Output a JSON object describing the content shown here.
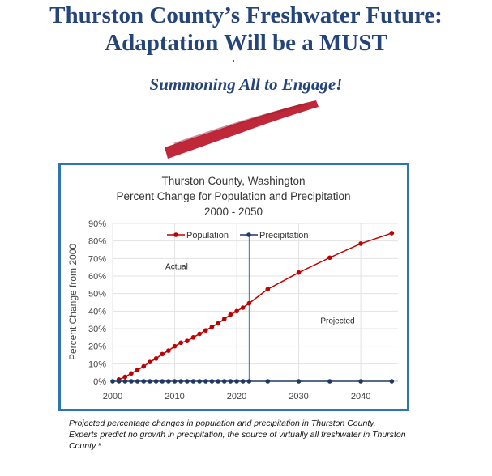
{
  "slide": {
    "title_line1": "Thurston County’s Freshwater Future:",
    "title_line2": "Adaptation Will be a MUST",
    "subtitle": "Summoning All to Engage!",
    "accent_color": "#c0283a",
    "title_color": "#25447a"
  },
  "caption": {
    "line1": "Projected percentage changes in population and precipitation in Thurston County.",
    "line2": "Experts predict no growth in precipitation, the source of virtually all freshwater in Thurston County.*"
  },
  "chart_data": {
    "type": "line",
    "title_lines": [
      "Thurston County, Washington",
      "Percent Change for Population and Precipitation",
      "2000 - 2050"
    ],
    "ylabel": "Percent Change from 2000",
    "xlabel": "",
    "xlim": [
      2000,
      2046
    ],
    "ylim": [
      0,
      90
    ],
    "x_ticks": [
      "2000",
      "2010",
      "2020",
      "2030",
      "2040"
    ],
    "x_tick_values": [
      2000,
      2010,
      2020,
      2030,
      2040
    ],
    "y_ticks": [
      "0%",
      "10%",
      "20%",
      "30%",
      "40%",
      "50%",
      "60%",
      "70%",
      "80%",
      "90%"
    ],
    "y_tick_values": [
      0,
      10,
      20,
      30,
      40,
      50,
      60,
      70,
      80,
      90
    ],
    "grid": true,
    "divider_year": 2022,
    "annotations": {
      "actual": "Actual",
      "projected": "Projected"
    },
    "series": [
      {
        "name": "Population",
        "color": "#c00000",
        "x": [
          2001,
          2002,
          2003,
          2004,
          2005,
          2006,
          2007,
          2008,
          2009,
          2010,
          2011,
          2012,
          2013,
          2014,
          2015,
          2016,
          2017,
          2018,
          2019,
          2020,
          2021,
          2022,
          2025,
          2030,
          2035,
          2040,
          2045
        ],
        "values": [
          1,
          2.5,
          4.5,
          6.5,
          8.5,
          11,
          13,
          15.5,
          17.5,
          20,
          22,
          23,
          25,
          27,
          29,
          31,
          33,
          35.5,
          38,
          40,
          42,
          44.5,
          52.5,
          62,
          70.5,
          78.5,
          84.5
        ]
      },
      {
        "name": "Precipitation",
        "color": "#1f3864",
        "x": [
          2000,
          2001,
          2002,
          2003,
          2004,
          2005,
          2006,
          2007,
          2008,
          2009,
          2010,
          2011,
          2012,
          2013,
          2014,
          2015,
          2016,
          2017,
          2018,
          2019,
          2020,
          2021,
          2022,
          2025,
          2030,
          2035,
          2040,
          2045
        ],
        "values": [
          0,
          0,
          0,
          0,
          0,
          0,
          0,
          0,
          0,
          0,
          0,
          0,
          0,
          0,
          0,
          0,
          0,
          0,
          0,
          0,
          0,
          0,
          0,
          0,
          0,
          0,
          0,
          0
        ]
      }
    ]
  }
}
